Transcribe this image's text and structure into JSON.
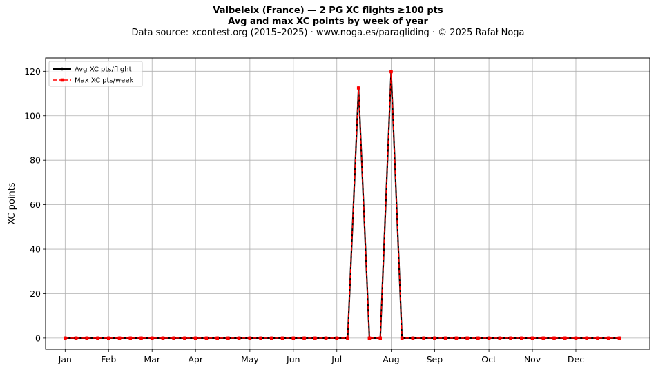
{
  "chart_data": {
    "type": "line",
    "title_line1": "Valbeleix (France)  —  2 PG XC flights ≥100 pts",
    "title_line2": "Avg and max XC points by week of year",
    "subtitle": "Data source: xcontest.org (2015–2025)  ·  www.noga.es/paragliding  ·  © 2025 Rafał Noga",
    "xlabel": "",
    "ylabel": "XC points",
    "ylim": [
      -5,
      126
    ],
    "yticks": [
      0,
      20,
      40,
      60,
      80,
      100,
      120
    ],
    "xlim": [
      -1.8,
      53.8
    ],
    "month_ticks": [
      {
        "label": "Jan",
        "week": 0
      },
      {
        "label": "Feb",
        "week": 4
      },
      {
        "label": "Mar",
        "week": 8
      },
      {
        "label": "Apr",
        "week": 12
      },
      {
        "label": "May",
        "week": 17
      },
      {
        "label": "Jun",
        "week": 21
      },
      {
        "label": "Jul",
        "week": 25
      },
      {
        "label": "Aug",
        "week": 30
      },
      {
        "label": "Sep",
        "week": 34
      },
      {
        "label": "Oct",
        "week": 39
      },
      {
        "label": "Nov",
        "week": 43
      },
      {
        "label": "Dec",
        "week": 47
      }
    ],
    "x": [
      0,
      1,
      2,
      3,
      4,
      5,
      6,
      7,
      8,
      9,
      10,
      11,
      12,
      13,
      14,
      15,
      16,
      17,
      18,
      19,
      20,
      21,
      22,
      23,
      24,
      25,
      26,
      27,
      28,
      29,
      30,
      31,
      32,
      33,
      34,
      35,
      36,
      37,
      38,
      39,
      40,
      41,
      42,
      43,
      44,
      45,
      46,
      47,
      48,
      49,
      50,
      51
    ],
    "series": [
      {
        "name": "Avg XC pts/flight",
        "color": "#000000",
        "marker": "circle",
        "linestyle": "solid",
        "values": [
          0,
          0,
          0,
          0,
          0,
          0,
          0,
          0,
          0,
          0,
          0,
          0,
          0,
          0,
          0,
          0,
          0,
          0,
          0,
          0,
          0,
          0,
          0,
          0,
          0,
          0,
          0,
          112.5,
          0,
          0,
          119.8,
          0,
          0,
          0,
          0,
          0,
          0,
          0,
          0,
          0,
          0,
          0,
          0,
          0,
          0,
          0,
          0,
          0,
          0,
          0,
          0,
          0
        ]
      },
      {
        "name": "Max XC pts/week",
        "color": "#ff0000",
        "marker": "square",
        "linestyle": "dashed",
        "values": [
          0,
          0,
          0,
          0,
          0,
          0,
          0,
          0,
          0,
          0,
          0,
          0,
          0,
          0,
          0,
          0,
          0,
          0,
          0,
          0,
          0,
          0,
          0,
          0,
          0,
          0,
          0,
          112.5,
          0,
          0,
          119.8,
          0,
          0,
          0,
          0,
          0,
          0,
          0,
          0,
          0,
          0,
          0,
          0,
          0,
          0,
          0,
          0,
          0,
          0,
          0,
          0,
          0
        ]
      }
    ],
    "legend_position": "top-left",
    "grid": true
  }
}
